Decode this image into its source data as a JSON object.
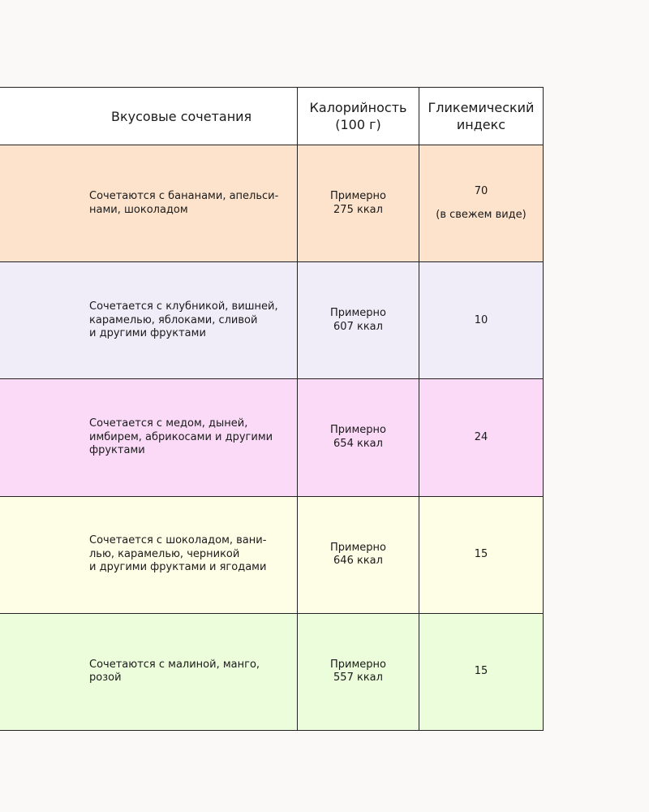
{
  "table": {
    "header": [
      [
        "Вкусовые сочетания"
      ],
      [
        "Калорийность",
        "(100 г)"
      ],
      [
        "Гликемический",
        "индекс"
      ]
    ],
    "rows": [
      {
        "color": "#fde3cc",
        "pairing": [
          "Сочетаются с бананами, апельси-",
          "нами, шоколадом"
        ],
        "calories": [
          "Примерно",
          "275 ккал"
        ],
        "gi": [
          "70",
          "(в свежем виде)"
        ]
      },
      {
        "color": "#f0edf9",
        "pairing": [
          "Сочетается с клубникой, вишней,",
          "карамелью, яблоками, сливой",
          "и другими фруктами"
        ],
        "calories": [
          "Примерно",
          "607 ккал"
        ],
        "gi": [
          "10"
        ]
      },
      {
        "color": "#fbdaf8",
        "pairing": [
          "Сочетается с медом, дыней,",
          "имбирем, абрикосами и другими",
          "фруктами"
        ],
        "calories": [
          "Примерно",
          "654 ккал"
        ],
        "gi": [
          "24"
        ]
      },
      {
        "color": "#fefde6",
        "pairing": [
          "Сочетается с шоколадом, вани-",
          "лью, карамелью, черникой",
          "и другими фруктами и ягодами"
        ],
        "calories": [
          "Примерно",
          "646 ккал"
        ],
        "gi": [
          "15"
        ]
      },
      {
        "color": "#ecfddb",
        "pairing": [
          "Сочетаются с малиной, манго,",
          "розой"
        ],
        "calories": [
          "Примерно",
          "557 ккал"
        ],
        "gi": [
          "15"
        ]
      }
    ]
  }
}
